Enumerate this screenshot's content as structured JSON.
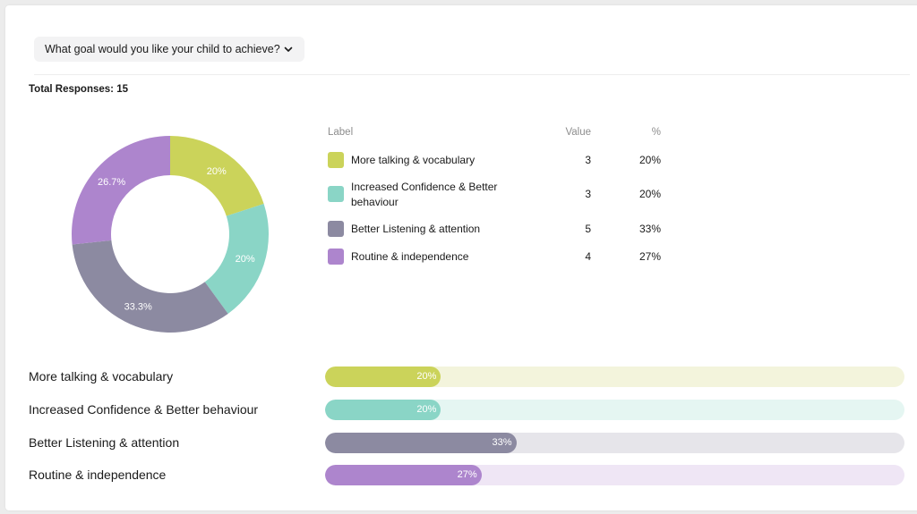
{
  "question": {
    "label": "What goal would you like your child to achieve?"
  },
  "total_responses": "Total Responses: 15",
  "legend_headers": {
    "label": "Label",
    "value": "Value",
    "percent": "%"
  },
  "colors": {
    "lime": "#cbd35a",
    "teal": "#8ad5c6",
    "slate": "#8c8aa1",
    "purple": "#ad85cd"
  },
  "chart_data": [
    {
      "type": "pie",
      "variant": "donut",
      "title": "",
      "categories": [
        "More talking & vocabulary",
        "Increased Confidence & Better behaviour",
        "Better Listening & attention",
        "Routine & independence"
      ],
      "values": [
        3,
        3,
        5,
        4
      ],
      "percent_labels": [
        "20%",
        "20%",
        "33.3%",
        "26.7%"
      ],
      "colors": [
        "#cbd35a",
        "#8ad5c6",
        "#8c8aa1",
        "#ad85cd"
      ]
    },
    {
      "type": "bar",
      "orientation": "horizontal",
      "title": "",
      "categories": [
        "More talking & vocabulary",
        "Increased Confidence & Better behaviour",
        "Better Listening & attention",
        "Routine & independence"
      ],
      "values": [
        20,
        20,
        33,
        27
      ],
      "value_labels": [
        "20%",
        "20%",
        "33%",
        "27%"
      ],
      "xlim": [
        0,
        100
      ],
      "colors": [
        "#cbd35a",
        "#8ad5c6",
        "#8c8aa1",
        "#ad85cd"
      ],
      "track_colors": [
        "#f3f4dc",
        "#e5f6f2",
        "#e6e5ea",
        "#efe6f5"
      ]
    }
  ],
  "legend_rows": [
    {
      "label": "More talking & vocabulary",
      "value": "3",
      "percent": "20%"
    },
    {
      "label": "Increased Confidence & Better behaviour",
      "value": "3",
      "percent": "20%"
    },
    {
      "label": "Better Listening & attention",
      "value": "5",
      "percent": "33%"
    },
    {
      "label": "Routine & independence",
      "value": "4",
      "percent": "27%"
    }
  ]
}
